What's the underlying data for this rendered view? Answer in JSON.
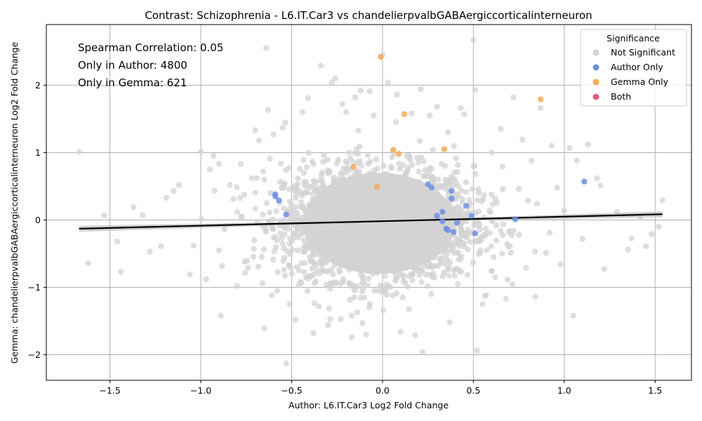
{
  "chart_data": {
    "type": "scatter",
    "title": "Contrast: Schizophrenia - L6.IT.Car3 vs chandelierpvalbGABAergiccorticalinterneuron",
    "xlabel": "Author: L6.IT.Car3 Log2 Fold Change",
    "ylabel": "Gemma: chandelierpvalbGABAergiccorticalinterneuron Log2 Fold Change",
    "xlim": [
      -1.85,
      1.7
    ],
    "ylim": [
      -2.38,
      2.9
    ],
    "xticks": [
      -1.5,
      -1.0,
      -0.5,
      0.0,
      0.5,
      1.0,
      1.5
    ],
    "xtick_labels": [
      "−1.5",
      "−1.0",
      "−0.5",
      "0.0",
      "0.5",
      "1.0",
      "1.5"
    ],
    "yticks": [
      -2,
      -1,
      0,
      1,
      2
    ],
    "ytick_labels": [
      "−2",
      "−1",
      "0",
      "1",
      "2"
    ],
    "grid": true,
    "annotations": [
      "Spearman Correlation: 0.05",
      "Only in Author: 4800",
      "Only in Gemma: 621"
    ],
    "legend": {
      "title": "Significance",
      "placement": "top-right",
      "entries": [
        {
          "label": "Not Significant",
          "color": "#d3d3d3"
        },
        {
          "label": "Author Only",
          "color": "#6e8fe0"
        },
        {
          "label": "Gemma Only",
          "color": "#f5a955"
        },
        {
          "label": "Both",
          "color": "#e0607a"
        }
      ]
    },
    "regression": {
      "x": [
        -1.67,
        1.54
      ],
      "y": [
        -0.13,
        0.085
      ],
      "color": "#000000"
    },
    "series": [
      {
        "name": "Author Only",
        "color": "#6e8fe0",
        "points": [
          [
            -0.59,
            0.38
          ],
          [
            -0.59,
            0.35
          ],
          [
            -0.57,
            0.29
          ],
          [
            -0.53,
            0.08
          ],
          [
            0.25,
            0.53
          ],
          [
            0.27,
            0.48
          ],
          [
            0.3,
            0.06
          ],
          [
            0.33,
            0.12
          ],
          [
            0.33,
            -0.02
          ],
          [
            0.35,
            -0.13
          ],
          [
            0.36,
            -0.15
          ],
          [
            0.38,
            0.43
          ],
          [
            0.38,
            0.32
          ],
          [
            0.39,
            -0.18
          ],
          [
            0.41,
            -0.04
          ],
          [
            0.46,
            0.21
          ],
          [
            0.49,
            0.06
          ],
          [
            0.51,
            -0.2
          ],
          [
            0.73,
            0.01
          ],
          [
            1.11,
            0.57
          ]
        ]
      },
      {
        "name": "Gemma Only",
        "color": "#f5a955",
        "points": [
          [
            -0.01,
            2.42
          ],
          [
            0.12,
            1.57
          ],
          [
            0.87,
            1.79
          ],
          [
            0.06,
            1.04
          ],
          [
            0.34,
            1.05
          ],
          [
            -0.16,
            0.79
          ],
          [
            0.09,
            0.98
          ],
          [
            -0.03,
            0.49
          ]
        ]
      },
      {
        "name": "Both",
        "color": "#e0607a",
        "points": []
      },
      {
        "name": "Not Significant",
        "color": "#d3d3d3",
        "points": [
          [
            -1.67,
            1.01
          ],
          [
            -1.53,
            0.07
          ],
          [
            -1.44,
            -0.77
          ],
          [
            -1.37,
            0.19
          ],
          [
            -1.28,
            -0.47
          ],
          [
            -1.19,
            0.33
          ],
          [
            -1.15,
            0.43
          ],
          [
            -1.06,
            -0.81
          ],
          [
            -1.0,
            1.01
          ],
          [
            -0.97,
            -0.88
          ],
          [
            -0.95,
            0.75
          ],
          [
            -0.9,
            -0.45
          ],
          [
            -0.89,
            -1.42
          ],
          [
            -0.84,
            0.52
          ],
          [
            -0.8,
            -0.98
          ],
          [
            -0.78,
            0.83
          ],
          [
            -0.74,
            -0.71
          ],
          [
            -0.7,
            1.33
          ],
          [
            -0.68,
            1.18
          ],
          [
            -0.65,
            -1.61
          ],
          [
            -0.64,
            2.55
          ],
          [
            -0.63,
            1.63
          ],
          [
            -0.6,
            1.27
          ],
          [
            -0.55,
            1.37
          ],
          [
            -0.53,
            -2.13
          ],
          [
            -0.51,
            -1.25
          ],
          [
            -0.48,
            -1.48
          ],
          [
            -0.44,
            1.6
          ],
          [
            -0.41,
            1.81
          ],
          [
            -0.38,
            -1.68
          ],
          [
            -0.34,
            2.29
          ],
          [
            -0.3,
            -1.56
          ],
          [
            -0.28,
            2.04
          ],
          [
            -0.26,
            2.1
          ],
          [
            -0.23,
            -1.47
          ],
          [
            -0.22,
            1.72
          ],
          [
            -0.2,
            1.6
          ],
          [
            -0.17,
            -1.42
          ],
          [
            -0.15,
            1.82
          ],
          [
            -0.12,
            1.92
          ],
          [
            -0.11,
            -1.53
          ],
          [
            -0.09,
            -1.7
          ],
          [
            -0.07,
            1.91
          ],
          [
            -0.05,
            1.55
          ],
          [
            0.0,
            2.45
          ],
          [
            0.03,
            2.04
          ],
          [
            0.08,
            1.86
          ],
          [
            0.1,
            -1.66
          ],
          [
            0.16,
            1.58
          ],
          [
            0.18,
            -1.71
          ],
          [
            0.21,
            1.94
          ],
          [
            0.22,
            -1.96
          ],
          [
            0.26,
            1.55
          ],
          [
            0.3,
            1.68
          ],
          [
            0.36,
            1.3
          ],
          [
            0.37,
            -1.52
          ],
          [
            0.43,
            1.66
          ],
          [
            0.45,
            1.57
          ],
          [
            0.5,
            2.67
          ],
          [
            0.51,
            1.93
          ],
          [
            0.52,
            -1.94
          ],
          [
            0.55,
            -1.25
          ],
          [
            0.6,
            1.0
          ],
          [
            0.65,
            1.35
          ],
          [
            0.68,
            -1.17
          ],
          [
            0.72,
            1.82
          ],
          [
            0.77,
            1.19
          ],
          [
            0.82,
            0.88
          ],
          [
            0.84,
            -1.14
          ],
          [
            0.87,
            1.66
          ],
          [
            0.9,
            -0.49
          ],
          [
            0.93,
            1.1
          ],
          [
            0.96,
            0.48
          ],
          [
            0.98,
            -0.66
          ],
          [
            1.03,
            1.07
          ],
          [
            1.05,
            -1.42
          ],
          [
            1.07,
            0.88
          ],
          [
            1.13,
            1.12
          ],
          [
            1.18,
            0.62
          ],
          [
            1.22,
            -0.73
          ],
          [
            1.29,
            0.12
          ],
          [
            1.35,
            -0.44
          ],
          [
            1.42,
            0.03
          ],
          [
            1.48,
            -0.21
          ],
          [
            1.52,
            -0.1
          ],
          [
            1.54,
            0.29
          ],
          [
            -1.62,
            -0.64
          ],
          [
            -1.46,
            -0.32
          ],
          [
            -1.32,
            0.07
          ],
          [
            -1.22,
            -0.39
          ],
          [
            -1.12,
            0.52
          ],
          [
            -1.04,
            -0.38
          ],
          [
            -0.93,
            0.95
          ],
          [
            -0.87,
            -0.14
          ],
          [
            -0.82,
            0.31
          ],
          [
            -0.76,
            -0.62
          ],
          [
            -0.72,
            0.62
          ],
          [
            -0.66,
            -0.94
          ],
          [
            -0.62,
            0.91
          ],
          [
            -0.58,
            -1.05
          ],
          [
            0.62,
            -0.85
          ],
          [
            0.66,
            0.79
          ],
          [
            0.7,
            -0.39
          ],
          [
            0.75,
            0.46
          ],
          [
            0.79,
            -0.71
          ],
          [
            0.85,
            0.24
          ],
          [
            0.92,
            -0.19
          ],
          [
            1.0,
            0.14
          ],
          [
            1.1,
            -0.28
          ],
          [
            1.2,
            0.51
          ],
          [
            1.37,
            -0.27
          ],
          [
            1.45,
            -0.39
          ]
        ]
      }
    ]
  }
}
